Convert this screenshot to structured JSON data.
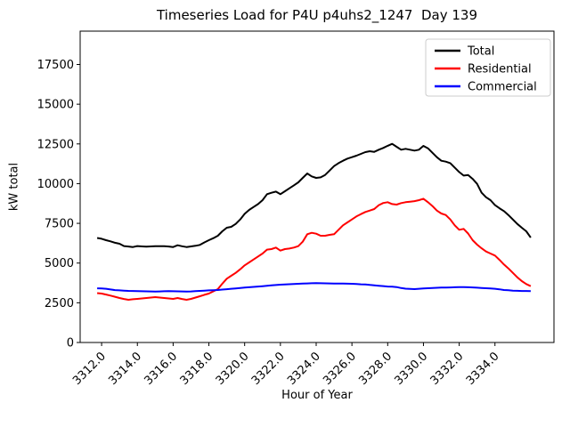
{
  "figure": {
    "title": "Timeseries Load for P4U p4uhs2_1247  Day 139",
    "xlabel": "Hour of Year",
    "ylabel": "kW total"
  },
  "chart_data": {
    "type": "line",
    "title": "Timeseries Load for P4U p4uhs2_1247  Day 139",
    "xlabel": "Hour of Year",
    "ylabel": "kW total",
    "grid": false,
    "legend_position": "upper right",
    "xlim": [
      3310.8,
      3337.3
    ],
    "ylim": [
      0,
      19600
    ],
    "x_ticks": [
      3312,
      3314,
      3316,
      3318,
      3320,
      3322,
      3324,
      3326,
      3328,
      3330,
      3332,
      3334
    ],
    "x_tick_labels": [
      "3312.0",
      "3314.0",
      "3316.0",
      "3318.0",
      "3320.0",
      "3322.0",
      "3324.0",
      "3326.0",
      "3328.0",
      "3330.0",
      "3332.0",
      "3334.0"
    ],
    "y_ticks": [
      0,
      2500,
      5000,
      7500,
      10000,
      12500,
      15000,
      17500
    ],
    "y_tick_labels": [
      "0",
      "2500",
      "5000",
      "7500",
      "10000",
      "12500",
      "15000",
      "17500"
    ],
    "x": [
      3311.75,
      3312.0,
      3312.25,
      3312.5,
      3312.75,
      3313.0,
      3313.25,
      3313.5,
      3313.75,
      3314.0,
      3314.25,
      3314.5,
      3314.75,
      3315.0,
      3315.25,
      3315.5,
      3315.75,
      3316.0,
      3316.25,
      3316.5,
      3316.75,
      3317.0,
      3317.25,
      3317.5,
      3317.75,
      3318.0,
      3318.25,
      3318.5,
      3318.75,
      3319.0,
      3319.25,
      3319.5,
      3319.75,
      3320.0,
      3320.25,
      3320.5,
      3320.75,
      3321.0,
      3321.25,
      3321.5,
      3321.75,
      3322.0,
      3322.25,
      3322.5,
      3322.75,
      3323.0,
      3323.25,
      3323.5,
      3323.75,
      3324.0,
      3324.25,
      3324.5,
      3324.75,
      3325.0,
      3325.25,
      3325.5,
      3325.75,
      3326.0,
      3326.25,
      3326.5,
      3326.75,
      3327.0,
      3327.25,
      3327.5,
      3327.75,
      3328.0,
      3328.25,
      3328.5,
      3328.75,
      3329.0,
      3329.25,
      3329.5,
      3329.75,
      3330.0,
      3330.25,
      3330.5,
      3330.75,
      3331.0,
      3331.25,
      3331.5,
      3331.75,
      3332.0,
      3332.25,
      3332.5,
      3332.75,
      3333.0,
      3333.25,
      3333.5,
      3333.75,
      3334.0,
      3334.25,
      3334.5,
      3334.75,
      3335.0,
      3335.25,
      3335.5,
      3335.75,
      3336.0
    ],
    "series": [
      {
        "name": "Total",
        "color": "#000000",
        "values": [
          6580,
          6530,
          6440,
          6370,
          6280,
          6215,
          6070,
          6040,
          6010,
          6070,
          6050,
          6030,
          6050,
          6065,
          6065,
          6065,
          6040,
          6010,
          6120,
          6060,
          6010,
          6050,
          6090,
          6145,
          6300,
          6440,
          6570,
          6720,
          7000,
          7225,
          7280,
          7465,
          7745,
          8100,
          8345,
          8530,
          8715,
          8960,
          9335,
          9425,
          9500,
          9335,
          9520,
          9705,
          9890,
          10080,
          10360,
          10640,
          10455,
          10360,
          10395,
          10545,
          10825,
          11105,
          11290,
          11440,
          11575,
          11665,
          11760,
          11870,
          11985,
          12040,
          12000,
          12135,
          12250,
          12380,
          12505,
          12320,
          12135,
          12190,
          12135,
          12080,
          12135,
          12375,
          12225,
          11945,
          11665,
          11440,
          11385,
          11290,
          11010,
          10730,
          10505,
          10545,
          10300,
          9985,
          9430,
          9145,
          8960,
          8645,
          8450,
          8270,
          8025,
          7745,
          7465,
          7225,
          7000,
          6600
        ]
      },
      {
        "name": "Residential",
        "color": "#ff0000",
        "values": [
          3110,
          3080,
          3020,
          2950,
          2880,
          2800,
          2740,
          2690,
          2720,
          2745,
          2770,
          2800,
          2830,
          2855,
          2830,
          2800,
          2770,
          2745,
          2800,
          2740,
          2690,
          2745,
          2830,
          2910,
          3000,
          3080,
          3220,
          3360,
          3700,
          4015,
          4200,
          4385,
          4610,
          4855,
          5040,
          5225,
          5415,
          5600,
          5845,
          5880,
          5975,
          5785,
          5880,
          5915,
          5975,
          6065,
          6345,
          6815,
          6905,
          6850,
          6720,
          6720,
          6775,
          6815,
          7095,
          7375,
          7560,
          7745,
          7935,
          8080,
          8215,
          8305,
          8400,
          8645,
          8780,
          8830,
          8715,
          8680,
          8775,
          8830,
          8865,
          8900,
          8960,
          9050,
          8830,
          8590,
          8305,
          8120,
          8025,
          7745,
          7375,
          7095,
          7150,
          6860,
          6440,
          6160,
          5930,
          5730,
          5600,
          5470,
          5200,
          4910,
          4665,
          4385,
          4105,
          3865,
          3680,
          3545
        ]
      },
      {
        "name": "Commercial",
        "color": "#0000ff",
        "values": [
          3410,
          3400,
          3380,
          3340,
          3300,
          3280,
          3265,
          3250,
          3240,
          3230,
          3225,
          3220,
          3215,
          3210,
          3215,
          3225,
          3230,
          3225,
          3220,
          3215,
          3210,
          3215,
          3230,
          3250,
          3265,
          3280,
          3295,
          3305,
          3330,
          3355,
          3380,
          3405,
          3430,
          3455,
          3480,
          3500,
          3520,
          3545,
          3570,
          3595,
          3620,
          3640,
          3655,
          3670,
          3685,
          3695,
          3705,
          3720,
          3730,
          3735,
          3730,
          3725,
          3720,
          3715,
          3710,
          3705,
          3700,
          3695,
          3680,
          3665,
          3655,
          3625,
          3600,
          3575,
          3550,
          3520,
          3510,
          3490,
          3430,
          3390,
          3370,
          3360,
          3385,
          3405,
          3415,
          3430,
          3445,
          3455,
          3460,
          3465,
          3475,
          3490,
          3490,
          3480,
          3465,
          3450,
          3435,
          3415,
          3400,
          3380,
          3350,
          3305,
          3285,
          3265,
          3255,
          3245,
          3240,
          3230
        ]
      }
    ]
  }
}
